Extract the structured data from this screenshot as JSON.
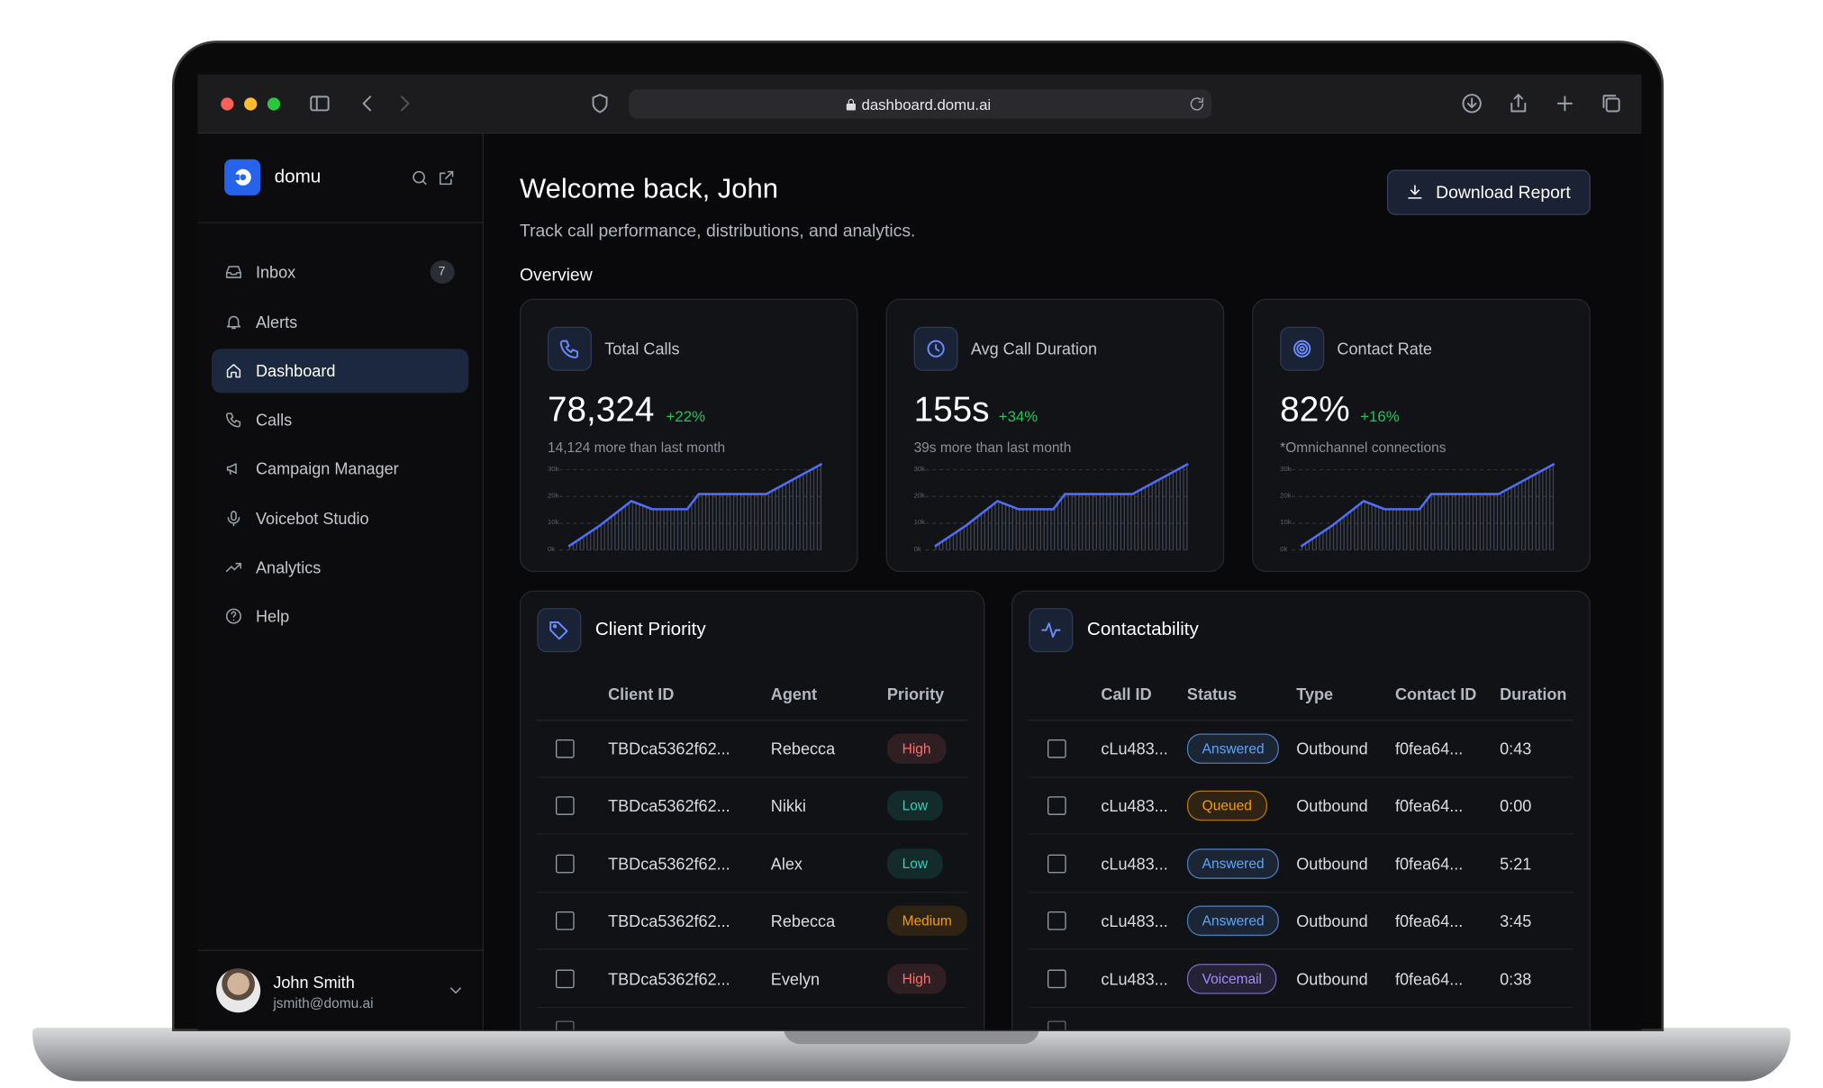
{
  "browser": {
    "url": "dashboard.domu.ai"
  },
  "sidebar": {
    "brand": "domu",
    "nav": [
      {
        "label": "Inbox",
        "badge": "7"
      },
      {
        "label": "Alerts"
      },
      {
        "label": "Dashboard",
        "active": true
      },
      {
        "label": "Calls"
      },
      {
        "label": "Campaign Manager"
      },
      {
        "label": "Voicebot Studio"
      },
      {
        "label": "Analytics"
      },
      {
        "label": "Help"
      }
    ],
    "user": {
      "name": "John Smith",
      "email": "jsmith@domu.ai"
    }
  },
  "header": {
    "title": "Welcome back, John",
    "subtitle": "Track call performance, distributions, and analytics.",
    "button": "Download Report"
  },
  "overview": {
    "title": "Overview",
    "cards": [
      {
        "label": "Total Calls",
        "value": "78,324",
        "delta": "+22%",
        "note": "14,124 more than last month",
        "axis": [
          "30k",
          "20k",
          "10k",
          "0k"
        ]
      },
      {
        "label": "Avg Call Duration",
        "value": "155s",
        "delta": "+34%",
        "note": "39s more than last month",
        "axis": [
          "30k",
          "20k",
          "10k",
          "0k"
        ]
      },
      {
        "label": "Contact Rate",
        "value": "82%",
        "delta": "+16%",
        "note": "*Omnichannel connections",
        "axis": [
          "30k",
          "20k",
          "10k",
          "0k"
        ]
      }
    ]
  },
  "client_priority": {
    "title": "Client Priority",
    "columns": [
      "Client ID",
      "Agent",
      "Priority"
    ],
    "rows": [
      {
        "cells": [
          "TBDca5362f62...",
          "Rebecca",
          "High"
        ],
        "color": "#f87171"
      },
      {
        "cells": [
          "TBDca5362f62...",
          "Nikki",
          "Low"
        ],
        "color": "#2dd4bf"
      },
      {
        "cells": [
          "TBDca5362f62...",
          "Alex",
          "Low"
        ],
        "color": "#2dd4bf"
      },
      {
        "cells": [
          "TBDca5362f62...",
          "Rebecca",
          "Medium"
        ],
        "color": "#f59e0b"
      },
      {
        "cells": [
          "TBDca5362f62...",
          "Evelyn",
          "High"
        ],
        "color": "#f87171"
      }
    ]
  },
  "contactability": {
    "title": "Contactability",
    "columns": [
      "Call ID",
      "Status",
      "Type",
      "Contact ID",
      "Duration"
    ],
    "rows": [
      {
        "cells": [
          "cLu483...",
          "Answered",
          "Outbound",
          "f0fea64...",
          "0:43"
        ],
        "color": "#60a5fa"
      },
      {
        "cells": [
          "cLu483...",
          "Queued",
          "Outbound",
          "f0fea64...",
          "0:00"
        ],
        "color": "#f59e0b"
      },
      {
        "cells": [
          "cLu483...",
          "Answered",
          "Outbound",
          "f0fea64...",
          "5:21"
        ],
        "color": "#60a5fa"
      },
      {
        "cells": [
          "cLu483...",
          "Answered",
          "Outbound",
          "f0fea64...",
          "3:45"
        ],
        "color": "#60a5fa"
      },
      {
        "cells": [
          "cLu483...",
          "Voicemail",
          "Outbound",
          "f0fea64...",
          "0:38"
        ],
        "color": "#a78bfa"
      }
    ]
  }
}
